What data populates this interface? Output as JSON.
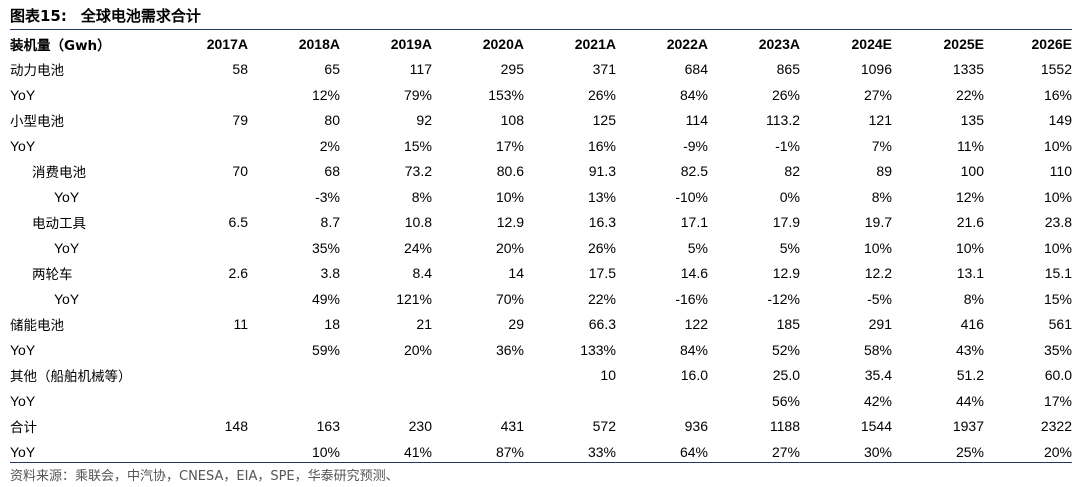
{
  "title": {
    "label": "图表15:",
    "text": "全球电池需求合计"
  },
  "columns": [
    "装机量（Gwh）",
    "2017A",
    "2018A",
    "2019A",
    "2020A",
    "2021A",
    "2022A",
    "2023A",
    "2024E",
    "2025E",
    "2026E"
  ],
  "rows": [
    {
      "label": "动力电池",
      "indent": 0,
      "cells": [
        "58",
        "65",
        "117",
        "295",
        "371",
        "684",
        "865",
        "1096",
        "1335",
        "1552"
      ]
    },
    {
      "label": "YoY",
      "indent": 0,
      "cells": [
        "",
        "12%",
        "79%",
        "153%",
        "26%",
        "84%",
        "26%",
        "27%",
        "22%",
        "16%"
      ]
    },
    {
      "label": "小型电池",
      "indent": 0,
      "cells": [
        "79",
        "80",
        "92",
        "108",
        "125",
        "114",
        "113.2",
        "121",
        "135",
        "149"
      ]
    },
    {
      "label": "YoY",
      "indent": 0,
      "cells": [
        "",
        "2%",
        "15%",
        "17%",
        "16%",
        "-9%",
        "-1%",
        "7%",
        "11%",
        "10%"
      ]
    },
    {
      "label": "消费电池",
      "indent": 1,
      "cells": [
        "70",
        "68",
        "73.2",
        "80.6",
        "91.3",
        "82.5",
        "82",
        "89",
        "100",
        "110"
      ]
    },
    {
      "label": "YoY",
      "indent": 2,
      "cells": [
        "",
        "-3%",
        "8%",
        "10%",
        "13%",
        "-10%",
        "0%",
        "8%",
        "12%",
        "10%"
      ]
    },
    {
      "label": "电动工具",
      "indent": 1,
      "cells": [
        "6.5",
        "8.7",
        "10.8",
        "12.9",
        "16.3",
        "17.1",
        "17.9",
        "19.7",
        "21.6",
        "23.8"
      ]
    },
    {
      "label": "YoY",
      "indent": 2,
      "cells": [
        "",
        "35%",
        "24%",
        "20%",
        "26%",
        "5%",
        "5%",
        "10%",
        "10%",
        "10%"
      ]
    },
    {
      "label": "两轮车",
      "indent": 1,
      "cells": [
        "2.6",
        "3.8",
        "8.4",
        "14",
        "17.5",
        "14.6",
        "12.9",
        "12.2",
        "13.1",
        "15.1"
      ]
    },
    {
      "label": "YoY",
      "indent": 2,
      "cells": [
        "",
        "49%",
        "121%",
        "70%",
        "22%",
        "-16%",
        "-12%",
        "-5%",
        "8%",
        "15%"
      ]
    },
    {
      "label": "储能电池",
      "indent": 0,
      "cells": [
        "11",
        "18",
        "21",
        "29",
        "66.3",
        "122",
        "185",
        "291",
        "416",
        "561"
      ]
    },
    {
      "label": "YoY",
      "indent": 0,
      "cells": [
        "",
        "59%",
        "20%",
        "36%",
        "133%",
        "84%",
        "52%",
        "58%",
        "43%",
        "35%"
      ]
    },
    {
      "label": "其他（船舶机械等）",
      "indent": 0,
      "cells": [
        "",
        "",
        "",
        "",
        "10",
        "16.0",
        "25.0",
        "35.4",
        "51.2",
        "60.0"
      ]
    },
    {
      "label": "YoY",
      "indent": 0,
      "cells": [
        "",
        "",
        "",
        "",
        "",
        "",
        "56%",
        "42%",
        "44%",
        "17%"
      ]
    },
    {
      "label": "合计",
      "indent": 0,
      "cells": [
        "148",
        "163",
        "230",
        "431",
        "572",
        "936",
        "1188",
        "1544",
        "1937",
        "2322"
      ]
    },
    {
      "label": "YoY",
      "indent": 0,
      "cells": [
        "",
        "10%",
        "41%",
        "87%",
        "33%",
        "64%",
        "27%",
        "30%",
        "25%",
        "20%"
      ]
    }
  ],
  "source": "资料来源：乘联会，中汽协，CNESA，EIA，SPE，华泰研究预测、"
}
